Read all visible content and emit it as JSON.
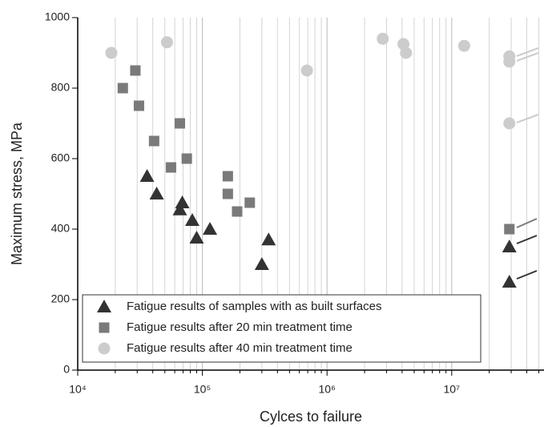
{
  "chart_data": {
    "type": "scatter",
    "x_label": "Cylces to failure",
    "y_label": "Maximum stress, MPa",
    "xscale": "log",
    "xlim": [
      10000,
      55000000
    ],
    "ylim": [
      0,
      1000
    ],
    "xticks": [
      {
        "value": 10000,
        "label": "10⁴"
      },
      {
        "value": 100000,
        "label": "10⁵"
      },
      {
        "value": 1000000,
        "label": "10⁶"
      },
      {
        "value": 10000000,
        "label": "10⁷"
      }
    ],
    "yticks": [
      0,
      200,
      400,
      600,
      800,
      1000
    ],
    "grid": "x",
    "legend": "lower left",
    "series": [
      {
        "name": "Fatigue results of samples with as built surfaces",
        "color": "#333333",
        "marker": "triangle",
        "x": [
          36000,
          43000,
          69000,
          66000,
          83000,
          90000,
          115000,
          300000,
          340000,
          29000000,
          29000000
        ],
        "values": [
          550,
          500,
          475,
          455,
          425,
          375,
          400,
          300,
          370,
          350,
          250
        ]
      },
      {
        "name": "Fatigue results after 20 min treatment time",
        "color": "#7a7a7a",
        "marker": "square",
        "x": [
          23000,
          29000,
          31000,
          41000,
          56000,
          66000,
          75000,
          160000,
          160000,
          190000,
          240000,
          29000000
        ],
        "values": [
          800,
          850,
          750,
          650,
          575,
          700,
          600,
          550,
          500,
          450,
          475,
          400
        ]
      },
      {
        "name": "Fatigue results after 40 min treatment time",
        "color": "#cccccc",
        "marker": "circle",
        "x": [
          18600,
          52000,
          690000,
          2800000,
          4100000,
          4300000,
          12600000,
          29000000,
          29000000,
          29000000
        ],
        "values": [
          900,
          930,
          850,
          940,
          925,
          900,
          920,
          890,
          875,
          700
        ]
      }
    ]
  }
}
